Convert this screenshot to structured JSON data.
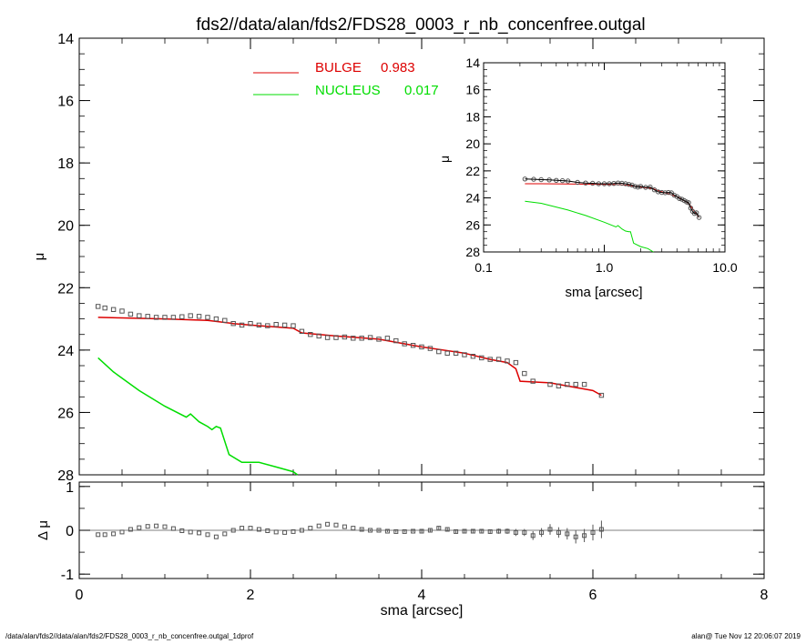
{
  "title": "fds2//data/alan/fds2/FDS28_0003_r_nb_concenfree.outgal",
  "footer": {
    "left": "/data/alan/fds2//data/alan/fds2/FDS28_0003_r_nb_concenfree.outgal_1dprof",
    "right": "alan@  Tue Nov 12 20:06:07 2019"
  },
  "legend": [
    {
      "label": "BULGE",
      "value": "0.983",
      "color": "#dd0000"
    },
    {
      "label": "NUCLEUS",
      "value": "0.017",
      "color": "#00dd00"
    }
  ],
  "colors": {
    "bulge": "#dd0000",
    "nucleus": "#00dd00",
    "data": "#555555",
    "axis": "#000000"
  },
  "chart_data": [
    {
      "type": "line",
      "name": "main-profile",
      "xlabel": "sma [arcsec]",
      "ylabel": "μ",
      "xlim": [
        0,
        8
      ],
      "ylim": [
        28,
        14
      ],
      "xticks": [
        "0",
        "2",
        "4",
        "6",
        "8"
      ],
      "yticks": [
        "14",
        "16",
        "18",
        "20",
        "22",
        "24",
        "26",
        "28"
      ],
      "series": [
        {
          "name": "BULGE",
          "x": [
            0.22,
            0.5,
            1.0,
            1.5,
            1.8,
            2.0,
            2.5,
            2.6,
            3.0,
            3.5,
            4.0,
            4.5,
            4.8,
            5.0,
            5.1,
            5.15,
            5.5,
            6.0,
            6.1
          ],
          "y": [
            22.95,
            22.97,
            23.0,
            23.05,
            23.15,
            23.2,
            23.3,
            23.45,
            23.55,
            23.65,
            23.9,
            24.1,
            24.3,
            24.4,
            24.6,
            25.0,
            25.05,
            25.3,
            25.45
          ]
        },
        {
          "name": "NUCLEUS",
          "x": [
            0.22,
            0.4,
            0.7,
            1.0,
            1.25,
            1.3,
            1.4,
            1.5,
            1.55,
            1.6,
            1.65,
            1.75,
            1.9,
            2.1,
            2.3,
            2.5,
            2.55
          ],
          "y": [
            24.25,
            24.7,
            25.3,
            25.8,
            26.15,
            26.05,
            26.3,
            26.45,
            26.55,
            26.45,
            26.5,
            27.35,
            27.6,
            27.6,
            27.75,
            27.9,
            28.0
          ]
        }
      ],
      "observed": {
        "x": [
          0.22,
          0.3,
          0.4,
          0.5,
          0.6,
          0.7,
          0.8,
          0.9,
          1.0,
          1.1,
          1.2,
          1.3,
          1.4,
          1.5,
          1.6,
          1.7,
          1.8,
          1.9,
          2.0,
          2.1,
          2.2,
          2.3,
          2.4,
          2.5,
          2.6,
          2.7,
          2.8,
          2.9,
          3.0,
          3.1,
          3.2,
          3.3,
          3.4,
          3.5,
          3.6,
          3.7,
          3.8,
          3.9,
          4.0,
          4.1,
          4.2,
          4.3,
          4.4,
          4.5,
          4.6,
          4.7,
          4.8,
          4.9,
          5.0,
          5.1,
          5.2,
          5.3,
          5.5,
          5.6,
          5.7,
          5.8,
          5.9,
          6.1
        ],
        "y": [
          22.6,
          22.65,
          22.7,
          22.75,
          22.85,
          22.9,
          22.92,
          22.95,
          22.95,
          22.95,
          22.93,
          22.9,
          22.92,
          22.95,
          23.0,
          23.05,
          23.15,
          23.2,
          23.15,
          23.2,
          23.22,
          23.18,
          23.2,
          23.22,
          23.4,
          23.5,
          23.55,
          23.6,
          23.6,
          23.58,
          23.62,
          23.62,
          23.6,
          23.65,
          23.62,
          23.7,
          23.8,
          23.85,
          23.9,
          23.95,
          24.05,
          24.1,
          24.1,
          24.15,
          24.2,
          24.25,
          24.3,
          24.3,
          24.35,
          24.4,
          24.75,
          25.0,
          25.1,
          25.15,
          25.1,
          25.1,
          25.1,
          25.45
        ]
      }
    },
    {
      "type": "line",
      "name": "residuals",
      "xlabel": "sma [arcsec]",
      "ylabel": "Δ μ",
      "xlim": [
        0,
        8
      ],
      "ylim": [
        -1.1,
        1.1
      ],
      "yticks": [
        "1",
        "0",
        "-1"
      ],
      "x": [
        0.22,
        0.3,
        0.4,
        0.5,
        0.6,
        0.7,
        0.8,
        0.9,
        1.0,
        1.1,
        1.2,
        1.3,
        1.4,
        1.5,
        1.6,
        1.7,
        1.8,
        1.9,
        2.0,
        2.1,
        2.2,
        2.3,
        2.4,
        2.5,
        2.6,
        2.7,
        2.8,
        2.9,
        3.0,
        3.1,
        3.2,
        3.3,
        3.4,
        3.5,
        3.6,
        3.7,
        3.8,
        3.9,
        4.0,
        4.1,
        4.2,
        4.3,
        4.4,
        4.5,
        4.6,
        4.7,
        4.8,
        4.9,
        5.0,
        5.1,
        5.2,
        5.3,
        5.4,
        5.5,
        5.6,
        5.7,
        5.8,
        5.9,
        6.0,
        6.1
      ],
      "y": [
        -0.1,
        -0.1,
        -0.08,
        -0.04,
        0.02,
        0.06,
        0.09,
        0.1,
        0.08,
        0.04,
        -0.01,
        -0.04,
        -0.06,
        -0.1,
        -0.15,
        -0.08,
        0.0,
        0.05,
        0.05,
        0.02,
        -0.01,
        -0.04,
        -0.05,
        -0.03,
        0.0,
        0.05,
        0.1,
        0.14,
        0.12,
        0.08,
        0.05,
        0.02,
        0.0,
        0.0,
        -0.02,
        -0.03,
        -0.03,
        -0.02,
        -0.02,
        0.0,
        0.05,
        0.02,
        -0.03,
        -0.02,
        -0.02,
        -0.02,
        -0.03,
        -0.02,
        -0.02,
        -0.05,
        -0.05,
        -0.12,
        -0.05,
        0.02,
        -0.05,
        -0.08,
        -0.15,
        -0.12,
        -0.05,
        0.02
      ],
      "err": [
        0.01,
        0.01,
        0.01,
        0.01,
        0.01,
        0.01,
        0.01,
        0.01,
        0.01,
        0.01,
        0.01,
        0.01,
        0.01,
        0.01,
        0.01,
        0.01,
        0.01,
        0.01,
        0.01,
        0.01,
        0.01,
        0.01,
        0.01,
        0.01,
        0.01,
        0.01,
        0.01,
        0.01,
        0.01,
        0.01,
        0.01,
        0.02,
        0.02,
        0.02,
        0.02,
        0.02,
        0.02,
        0.02,
        0.03,
        0.03,
        0.03,
        0.03,
        0.04,
        0.04,
        0.04,
        0.05,
        0.05,
        0.06,
        0.06,
        0.08,
        0.08,
        0.1,
        0.1,
        0.12,
        0.12,
        0.13,
        0.15,
        0.15,
        0.18,
        0.2
      ]
    },
    {
      "type": "line",
      "name": "inset-log-profile",
      "xlabel": "sma [arcsec]",
      "ylabel": "μ",
      "xscale": "log",
      "xlim": [
        0.1,
        10
      ],
      "ylim": [
        28,
        14
      ],
      "xticks": [
        "0.1",
        "1.0",
        "10.0"
      ],
      "yticks": [
        "14",
        "16",
        "18",
        "20",
        "22",
        "24",
        "26",
        "28"
      ],
      "series": [
        {
          "name": "BULGE",
          "x": [
            0.22,
            0.3,
            0.5,
            0.8,
            1.0,
            1.3,
            1.6,
            2.0,
            2.5,
            3.0,
            4.0,
            5.0,
            6.1
          ],
          "y": [
            22.95,
            22.95,
            22.97,
            22.99,
            23.0,
            23.02,
            23.07,
            23.2,
            23.3,
            23.55,
            23.9,
            24.4,
            25.45
          ]
        },
        {
          "name": "NUCLEUS",
          "x": [
            0.22,
            0.3,
            0.5,
            0.7,
            1.0,
            1.25,
            1.3,
            1.4,
            1.5,
            1.6,
            1.65,
            1.75,
            2.0,
            2.3,
            2.55
          ],
          "y": [
            24.25,
            24.4,
            24.9,
            25.3,
            25.8,
            26.15,
            26.05,
            26.3,
            26.45,
            26.5,
            26.5,
            27.35,
            27.6,
            27.75,
            28.0
          ]
        }
      ],
      "observed": {
        "x": [
          0.22,
          0.26,
          0.3,
          0.35,
          0.4,
          0.45,
          0.5,
          0.6,
          0.7,
          0.8,
          0.9,
          1.0,
          1.1,
          1.2,
          1.3,
          1.4,
          1.5,
          1.6,
          1.7,
          1.8,
          1.9,
          2.0,
          2.2,
          2.4,
          2.6,
          2.8,
          3.0,
          3.2,
          3.4,
          3.6,
          3.8,
          4.0,
          4.2,
          4.4,
          4.6,
          4.8,
          5.0,
          5.2,
          5.4,
          5.6,
          5.8,
          6.1
        ],
        "y": [
          22.6,
          22.62,
          22.65,
          22.67,
          22.7,
          22.72,
          22.75,
          22.85,
          22.9,
          22.92,
          22.95,
          22.95,
          22.95,
          22.93,
          22.9,
          22.92,
          22.95,
          23.0,
          23.05,
          23.15,
          23.2,
          23.15,
          23.22,
          23.2,
          23.4,
          23.55,
          23.6,
          23.62,
          23.6,
          23.62,
          23.8,
          23.9,
          24.05,
          24.1,
          24.2,
          24.3,
          24.35,
          24.75,
          25.0,
          25.15,
          25.1,
          25.45
        ]
      }
    }
  ]
}
